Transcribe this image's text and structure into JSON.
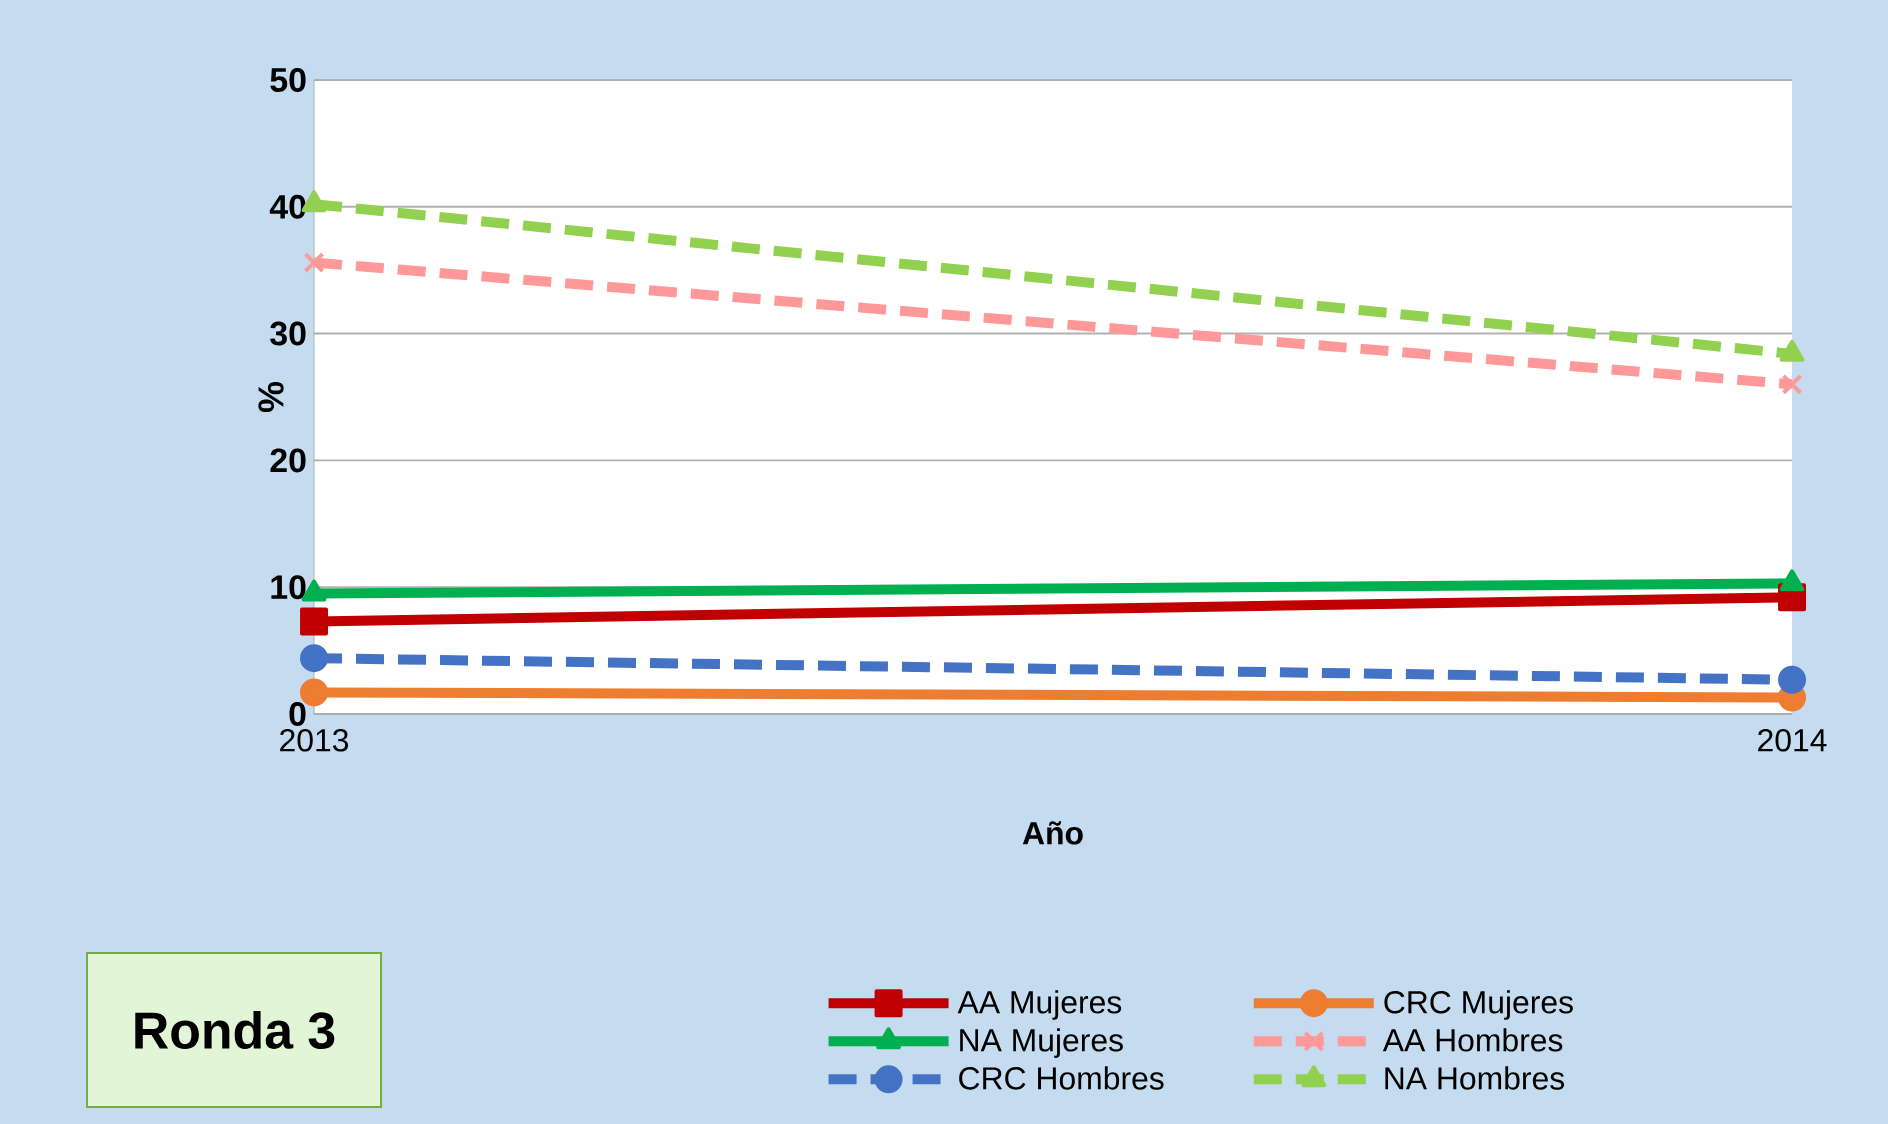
{
  "chart_data": {
    "type": "line",
    "xlabel": "Año",
    "ylabel": "%",
    "x": [
      2013,
      2014
    ],
    "xlim": [
      2013,
      2014
    ],
    "xticks": [
      2013,
      2014
    ],
    "ylim": [
      0,
      50
    ],
    "yticks": [
      0,
      10,
      20,
      30,
      40,
      50
    ],
    "grid": "y",
    "legend": "bottom",
    "annotations": [
      "Ronda 3"
    ],
    "series": [
      {
        "name": "AA Mujeres",
        "color": "#c00000",
        "marker": "square",
        "line_style": "solid",
        "values": [
          7.3,
          9.2
        ]
      },
      {
        "name": "CRC Mujeres",
        "color": "#ed7d31",
        "marker": "circle",
        "line_style": "solid",
        "values": [
          1.7,
          1.3
        ]
      },
      {
        "name": "NA Mujeres",
        "color": "#00b050",
        "marker": "triangle",
        "line_style": "solid",
        "values": [
          9.5,
          10.3
        ]
      },
      {
        "name": "AA Hombres",
        "color": "#ff9999",
        "marker": "cross",
        "line_style": "dashed",
        "values": [
          35.6,
          26.0
        ]
      },
      {
        "name": "CRC Hombres",
        "color": "#4472c4",
        "marker": "circle",
        "line_style": "dashed",
        "values": [
          4.4,
          2.7
        ]
      },
      {
        "name": "NA Hombres",
        "color": "#92d050",
        "marker": "triangle",
        "line_style": "dashed",
        "values": [
          40.2,
          28.4
        ]
      }
    ]
  }
}
